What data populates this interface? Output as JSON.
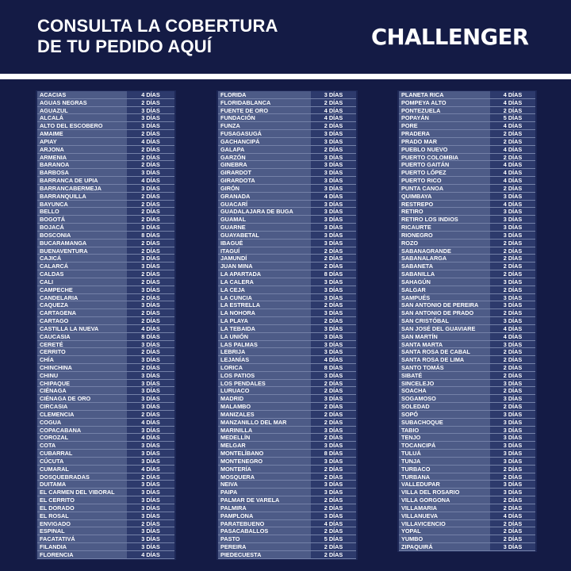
{
  "header": {
    "title_line1": "CONSULTA LA COBERTURA",
    "title_line2": "DE TU PEDIDO AQUÍ",
    "logo": "CHALLENGER"
  },
  "colors": {
    "background": "#141b45",
    "name_cell": "#4d5b87",
    "days_cell": "#2d3a6c"
  },
  "columns": [
    [
      [
        "ACACIAS",
        "4 DÍAS"
      ],
      [
        "AGUAS NEGRAS",
        "2 DÍAS"
      ],
      [
        "AGUAZUL",
        "3 DÍAS"
      ],
      [
        "ALCALÁ",
        "3 DÍAS"
      ],
      [
        "ALTO DEL ESCOBERO",
        "3 DÍAS"
      ],
      [
        "AMAIME",
        "2 DÍAS"
      ],
      [
        "APIAY",
        "4 DÍAS"
      ],
      [
        "ARJONA",
        "2 DÍAS"
      ],
      [
        "ARMENIA",
        "2 DÍAS"
      ],
      [
        "BARANOA",
        "2 DÍAS"
      ],
      [
        "BARBOSA",
        "3 DÍAS"
      ],
      [
        "BARRANCA DE UPIA",
        "4 DÍAS"
      ],
      [
        "BARRANCABERMEJA",
        "3 DÍAS"
      ],
      [
        "BARRANQUILLA",
        "2 DÍAS"
      ],
      [
        "BAYUNCA",
        "2 DÍAS"
      ],
      [
        "BELLO",
        "2 DÍAS"
      ],
      [
        "BOGOTÁ",
        "2 DÍAS"
      ],
      [
        "BOJACÁ",
        "3 DÍAS"
      ],
      [
        "BOSCONIA",
        "8 DÍAS"
      ],
      [
        "BUCARAMANGA",
        "2 DÍAS"
      ],
      [
        "BUENAVENTURA",
        "2 DÍAS"
      ],
      [
        "CAJICÁ",
        "3 DÍAS"
      ],
      [
        "CALARCÁ",
        "3 DÍAS"
      ],
      [
        "CALDAS",
        "2 DÍAS"
      ],
      [
        "CALI",
        "2 DÍAS"
      ],
      [
        "CAMPECHE",
        "3 DÍAS"
      ],
      [
        "CANDELARIA",
        "2 DÍAS"
      ],
      [
        "CAQUEZA",
        "3 DÍAS"
      ],
      [
        "CARTAGENA",
        "2 DÍAS"
      ],
      [
        "CARTAGO",
        "2 DÍAS"
      ],
      [
        "CASTILLA LA NUEVA",
        "4 DÍAS"
      ],
      [
        "CAUCASIA",
        "8 DÍAS"
      ],
      [
        "CERETÉ",
        "3 DÍAS"
      ],
      [
        "CERRITO",
        "2 DÍAS"
      ],
      [
        "CHÍA",
        "3 DÍAS"
      ],
      [
        "CHINCHINA",
        "2 DÍAS"
      ],
      [
        "CHINU",
        "3 DÍAS"
      ],
      [
        "CHIPAQUE",
        "3 DÍAS"
      ],
      [
        "CIÉNAGA",
        "3 DÍAS"
      ],
      [
        "CIÉNAGA DE ORO",
        "3 DÍAS"
      ],
      [
        "CIRCASIA",
        "3 DÍAS"
      ],
      [
        "CLEMENCIA",
        "2 DÍAS"
      ],
      [
        "COGUA",
        "4 DÍAS"
      ],
      [
        "COPACABANA",
        "3 DÍAS"
      ],
      [
        "COROZAL",
        "4 DÍAS"
      ],
      [
        "COTA",
        "3 DÍAS"
      ],
      [
        "CUBARRAL",
        "3 DÍAS"
      ],
      [
        "CÚCUTA",
        "3 DÍAS"
      ],
      [
        "CUMARAL",
        "4 DÍAS"
      ],
      [
        "DOSQUEBRADAS",
        "2 DÍAS"
      ],
      [
        "DUITAMA",
        "3 DÍAS"
      ],
      [
        "EL CARMEN DEL VIBORAL",
        "3 DÍAS"
      ],
      [
        "EL CERRITO",
        "3 DÍAS"
      ],
      [
        "EL DORADO",
        "3 DÍAS"
      ],
      [
        "EL ROSAL",
        "3 DÍAS"
      ],
      [
        "ENVIGADO",
        "2 DÍAS"
      ],
      [
        "ESPINAL",
        "3 DÍAS"
      ],
      [
        "FACATATIVÁ",
        "3 DÍAS"
      ],
      [
        "FILANDIA",
        "3 DÍAS"
      ],
      [
        "FLORENCIA",
        "4 DÍAS"
      ]
    ],
    [
      [
        "FLORIDA",
        "3 DÍAS"
      ],
      [
        "FLORIDABLANCA",
        "2 DÍAS"
      ],
      [
        "FUENTE DE ORO",
        "4 DÍAS"
      ],
      [
        "FUNDACIÓN",
        "4 DÍAS"
      ],
      [
        "FUNZA",
        "2 DÍAS"
      ],
      [
        "FUSAGASUGÁ",
        "3 DÍAS"
      ],
      [
        "GACHANCIPÁ",
        "3 DÍAS"
      ],
      [
        "GALAPA",
        "2 DÍAS"
      ],
      [
        "GARZÓN",
        "3 DÍAS"
      ],
      [
        "GINEBRA",
        "3 DÍAS"
      ],
      [
        "GIRARDOT",
        "3 DÍAS"
      ],
      [
        "GIRARDOTA",
        "3 DÍAS"
      ],
      [
        "GIRÓN",
        "3 DÍAS"
      ],
      [
        "GRANADA",
        "4 DÍAS"
      ],
      [
        "GUACARÍ",
        "3 DÍAS"
      ],
      [
        "GUADALAJARA DE BUGA",
        "3 DÍAS"
      ],
      [
        "GUAMAL",
        "3 DÍAS"
      ],
      [
        "GUARNE",
        "3 DÍAS"
      ],
      [
        "GUAYABETAL",
        "3 DÍAS"
      ],
      [
        "IBAGUÉ",
        "3 DÍAS"
      ],
      [
        "ITAGUÍ",
        "2 DÍAS"
      ],
      [
        "JAMUNDÍ",
        "2 DÍAS"
      ],
      [
        "JUAN MINA",
        "2 DÍAS"
      ],
      [
        "LA APARTADA",
        "8 DÍAS"
      ],
      [
        "LA CALERA",
        "3 DÍAS"
      ],
      [
        "LA CEJA",
        "3 DÍAS"
      ],
      [
        "LA CUNCIA",
        "3 DÍAS"
      ],
      [
        "LA ESTRELLA",
        "2 DÍAS"
      ],
      [
        "LA NOHORA",
        "3 DÍAS"
      ],
      [
        "LA PLAYA",
        "2 DÍAS"
      ],
      [
        "LA TEBAIDA",
        "3 DÍAS"
      ],
      [
        "LA UNIÓN",
        "3 DÍAS"
      ],
      [
        "LAS PALMAS",
        "3 DÍAS"
      ],
      [
        "LEBRIJA",
        "3 DÍAS"
      ],
      [
        "LEJANÍAS",
        "4 DÍAS"
      ],
      [
        "LORICA",
        "8 DÍAS"
      ],
      [
        "LOS PATIOS",
        "3 DÍAS"
      ],
      [
        "LOS PENDALES",
        "2 DÍAS"
      ],
      [
        "LURUACO",
        "2 DÍAS"
      ],
      [
        "MADRID",
        "3 DÍAS"
      ],
      [
        "MALAMBO",
        "2 DÍAS"
      ],
      [
        "MANIZALES",
        "2 DÍAS"
      ],
      [
        "MANZANILLO DEL MAR",
        "2 DÍAS"
      ],
      [
        "MARINILLA",
        "3 DÍAS"
      ],
      [
        "MEDELLÍN",
        "2 DÍAS"
      ],
      [
        "MELGAR",
        "3 DÍAS"
      ],
      [
        "MONTELÍBANO",
        "8 DÍAS"
      ],
      [
        "MONTENEGRO",
        "3 DÍAS"
      ],
      [
        "MONTERÍA",
        "2 DÍAS"
      ],
      [
        "MOSQUERA",
        "2 DÍAS"
      ],
      [
        "NEIVA",
        "3 DÍAS"
      ],
      [
        "PAIPA",
        "3 DÍAS"
      ],
      [
        "PALMAR DE VARELA",
        "2 DÍAS"
      ],
      [
        "PALMIRA",
        "2 DÍAS"
      ],
      [
        "PAMPLONA",
        "3 DÍAS"
      ],
      [
        "PARATEBUENO",
        "4 DÍAS"
      ],
      [
        "PASACABALLOS",
        "2 DÍAS"
      ],
      [
        "PASTO",
        "5 DÍAS"
      ],
      [
        "PEREIRA",
        "2 DÍAS"
      ],
      [
        "PIEDECUESTA",
        "2 DÍAS"
      ]
    ],
    [
      [
        "PLANETA RICA",
        "4 DÍAS"
      ],
      [
        "POMPEYA ALTO",
        "4 DÍAS"
      ],
      [
        "PONTEZUELA",
        "2 DÍAS"
      ],
      [
        "POPAYÁN",
        "5 DÍAS"
      ],
      [
        "PORE",
        "4 DÍAS"
      ],
      [
        "PRADERA",
        "2 DÍAS"
      ],
      [
        "PRADO MAR",
        "2 DÍAS"
      ],
      [
        "PUEBLO NUEVO",
        "4 DÍAS"
      ],
      [
        "PUERTO COLOMBIA",
        "2 DÍAS"
      ],
      [
        "PUERTO GAITÁN",
        "4 DÍAS"
      ],
      [
        "PUERTO LÓPEZ",
        "4 DÍAS"
      ],
      [
        "PUERTO RICO",
        "4 DÍAS"
      ],
      [
        "PUNTA CANOA",
        "2 DÍAS"
      ],
      [
        "QUIMBAYA",
        "3 DÍAS"
      ],
      [
        "RESTREPO",
        "4 DÍAS"
      ],
      [
        "RETIRO",
        "3 DÍAS"
      ],
      [
        "RETIRO LOS INDIOS",
        "3 DÍAS"
      ],
      [
        "RICAURTE",
        "3 DÍAS"
      ],
      [
        "RIONEGRO",
        "3 DÍAS"
      ],
      [
        "ROZO",
        "2 DÍAS"
      ],
      [
        "SABANAGRANDE",
        "2 DÍAS"
      ],
      [
        "SABANALARGA",
        "2 DÍAS"
      ],
      [
        "SABANETA",
        "2 DÍAS"
      ],
      [
        "SABANILLA",
        "2 DÍAS"
      ],
      [
        "SAHAGÚN",
        "3 DÍAS"
      ],
      [
        "SALGAR",
        "2 DÍAS"
      ],
      [
        "SAMPUÉS",
        "3 DÍAS"
      ],
      [
        "SAN ANTONIO DE PEREIRA",
        "3 DÍAS"
      ],
      [
        "SAN ANTONIO DE PRADO",
        "2 DÍAS"
      ],
      [
        "SAN CRISTÓBAL",
        "3 DÍAS"
      ],
      [
        "SAN JOSÉ DEL GUAVIARE",
        "4 DÍAS"
      ],
      [
        "SAN MARTÍN",
        "4 DÍAS"
      ],
      [
        "SANTA MARTA",
        "3 DÍAS"
      ],
      [
        "SANTA ROSA DE CABAL",
        "2 DÍAS"
      ],
      [
        "SANTA ROSA DE LIMA",
        "2 DÍAS"
      ],
      [
        "SANTO TOMÁS",
        "2 DÍAS"
      ],
      [
        "SIBATÉ",
        "2 DÍAS"
      ],
      [
        "SINCELEJO",
        "3 DÍAS"
      ],
      [
        "SOACHA",
        "2 DÍAS"
      ],
      [
        "SOGAMOSO",
        "3 DÍAS"
      ],
      [
        "SOLEDAD",
        "2 DÍAS"
      ],
      [
        "SOPÓ",
        "3 DÍAS"
      ],
      [
        "SUBACHOQUE",
        "3 DÍAS"
      ],
      [
        "TABIO",
        "3 DÍAS"
      ],
      [
        "TENJO",
        "3 DÍAS"
      ],
      [
        "TOCANCIPÁ",
        "3 DÍAS"
      ],
      [
        "TULUÁ",
        "3 DÍAS"
      ],
      [
        "TUNJA",
        "3 DÍAS"
      ],
      [
        "TURBACO",
        "2 DÍAS"
      ],
      [
        "TURBANA",
        "2 DÍAS"
      ],
      [
        "VALLEDUPAR",
        "3 DÍAS"
      ],
      [
        "VILLA DEL ROSARIO",
        "3 DÍAS"
      ],
      [
        "VILLA GORGONA",
        "2 DÍAS"
      ],
      [
        "VILLAMARIA",
        "2 DÍAS"
      ],
      [
        "VILLANUEVA",
        "4 DÍAS"
      ],
      [
        "VILLAVICENCIO",
        "2 DÍAS"
      ],
      [
        "YOPAL",
        "2 DÍAS"
      ],
      [
        "YUMBO",
        "2 DÍAS"
      ],
      [
        "ZIPAQUIRÁ",
        "3 DÍAS"
      ]
    ]
  ]
}
